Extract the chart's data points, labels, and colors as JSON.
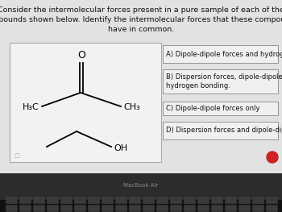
{
  "title_text": "Consider the intermolecular forces present in a pure sample of each of the\ncompounds shown below. Identify the intermolecular forces that these compounds\nhave in common.",
  "title_fontsize": 6.8,
  "screen_bg": "#d8d8d8",
  "content_bg": "#e2e2e2",
  "molecule_box_color": "#f2f2f2",
  "molecule_box_edge": "#aaaaaa",
  "answer_box_color": "#f0f0f0",
  "answer_box_edge": "#888888",
  "answers": [
    "A) Dipole-dipole forces and hydrogen bonding.",
    "B) Dispersion forces, dipole-dipole forces, and\nhydrogen bonding.",
    "C) Dipole-dipole forces only",
    "D) Dispersion forces and dipole-dipole forces"
  ],
  "answer_fontsize": 6.0,
  "macbook_text": "MacBook Air",
  "macbook_fontsize": 5,
  "keyboard_bg": "#1e1e1e",
  "keyboard_bar": "#2a2a2a",
  "red_btn_color": "#cc2222"
}
